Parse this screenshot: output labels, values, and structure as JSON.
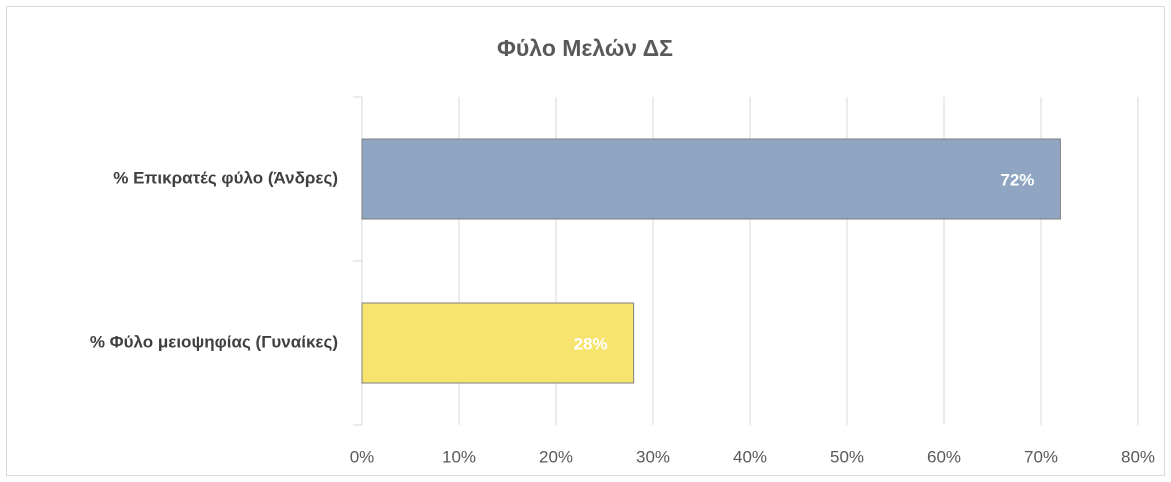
{
  "chart_data": {
    "type": "hbar",
    "title": "Φύλο Μελών ΔΣ",
    "categories": [
      "% Επικρατές φύλο (Άνδρες)",
      "% Φύλο μειοψηφίας (Γυναίκες)"
    ],
    "values": [
      72,
      28
    ],
    "value_labels": [
      "72%",
      "28%"
    ],
    "colors": [
      "#8fa5c2",
      "#f7e46e"
    ],
    "xlim": [
      0,
      80
    ],
    "xticks": [
      {
        "value": 0,
        "label": "0%"
      },
      {
        "value": 10,
        "label": "10%"
      },
      {
        "value": 20,
        "label": "20%"
      },
      {
        "value": 30,
        "label": "30%"
      },
      {
        "value": 40,
        "label": "40%"
      },
      {
        "value": 50,
        "label": "50%"
      },
      {
        "value": 60,
        "label": "60%"
      },
      {
        "value": 70,
        "label": "70%"
      },
      {
        "value": 80,
        "label": "80%"
      }
    ],
    "grid": true
  }
}
